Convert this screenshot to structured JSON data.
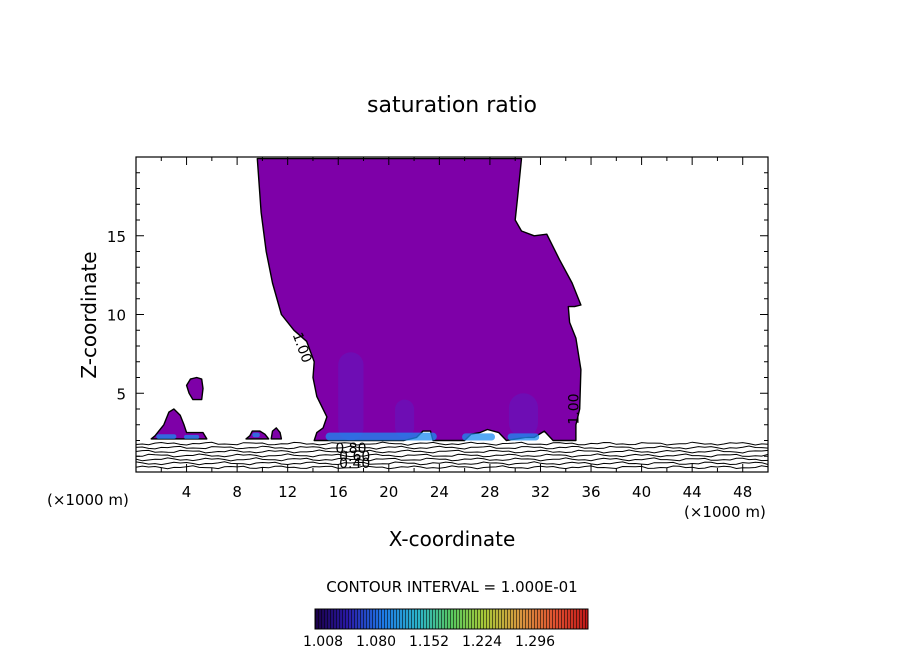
{
  "chart_data": {
    "type": "contour",
    "title": "saturation ratio",
    "xlabel": "X-coordinate",
    "ylabel": "Z-coordinate",
    "x_unit_left": "(×1000 m)",
    "x_unit_right": "(×1000 m)",
    "xlim": [
      0,
      50
    ],
    "ylim": [
      0,
      20
    ],
    "x_ticks": [
      4,
      8,
      12,
      16,
      20,
      24,
      28,
      32,
      36,
      40,
      44,
      48
    ],
    "y_ticks": [
      5,
      10,
      15
    ],
    "contour_interval_text": "CONTOUR INTERVAL = 1.000E-01",
    "contour_labels": [
      {
        "text": "1.00",
        "x": 12.8,
        "y": 7.8,
        "angle": 70
      },
      {
        "text": "1.00",
        "x": 35.0,
        "y": 4.0,
        "angle": -90
      },
      {
        "text": "0.80",
        "x": 17.0,
        "y": 1.2,
        "angle": 0
      },
      {
        "text": "0.60",
        "x": 17.3,
        "y": 0.7,
        "angle": 0
      },
      {
        "text": "0.40",
        "x": 17.3,
        "y": 0.25,
        "angle": 0
      }
    ],
    "colorbar": {
      "tick_labels": [
        "1.008",
        "1.080",
        "1.152",
        "1.224",
        "1.296"
      ],
      "range": [
        1.008,
        1.332
      ]
    },
    "regions": [
      {
        "name": "main-cloud",
        "value": 1.02,
        "color": "#7e00a8",
        "outline": [
          [
            9.6,
            19.9
          ],
          [
            30.5,
            19.9
          ],
          [
            30.2,
            17.5
          ],
          [
            30.0,
            16.0
          ],
          [
            30.5,
            15.3
          ],
          [
            31.5,
            15.0
          ],
          [
            32.5,
            15.1
          ],
          [
            33.5,
            13.5
          ],
          [
            34.5,
            12.0
          ],
          [
            35.2,
            10.6
          ],
          [
            34.7,
            10.5
          ],
          [
            34.2,
            10.5
          ],
          [
            34.3,
            9.5
          ],
          [
            34.8,
            8.5
          ],
          [
            35.2,
            6.5
          ],
          [
            35.1,
            4.0
          ],
          [
            34.8,
            3.0
          ],
          [
            34.8,
            2.0
          ],
          [
            33.0,
            2.0
          ],
          [
            32.3,
            2.6
          ],
          [
            31.5,
            2.2
          ],
          [
            30.8,
            2.2
          ],
          [
            29.3,
            2.0
          ],
          [
            28.7,
            2.5
          ],
          [
            27.8,
            2.7
          ],
          [
            27.2,
            2.5
          ],
          [
            26.5,
            2.4
          ],
          [
            26.0,
            2.0
          ],
          [
            23.5,
            2.0
          ],
          [
            23.3,
            2.6
          ],
          [
            22.7,
            2.6
          ],
          [
            22.2,
            2.2
          ],
          [
            21.2,
            2.0
          ],
          [
            14.1,
            2.0
          ],
          [
            14.3,
            2.5
          ],
          [
            14.8,
            2.8
          ],
          [
            15.1,
            3.5
          ],
          [
            14.3,
            4.8
          ],
          [
            14.0,
            6.0
          ],
          [
            14.1,
            7.0
          ],
          [
            13.5,
            8.3
          ],
          [
            12.5,
            9.0
          ],
          [
            11.5,
            10.0
          ],
          [
            10.8,
            12.0
          ],
          [
            10.3,
            14.0
          ],
          [
            9.9,
            16.5
          ]
        ]
      },
      {
        "name": "left-blob",
        "value": 1.02,
        "color": "#7e00a8",
        "outline": [
          [
            1.2,
            2.1
          ],
          [
            1.5,
            2.3
          ],
          [
            2.2,
            3.0
          ],
          [
            2.6,
            3.8
          ],
          [
            3.0,
            4.0
          ],
          [
            3.5,
            3.6
          ],
          [
            3.8,
            3.0
          ],
          [
            4.0,
            2.5
          ],
          [
            5.3,
            2.5
          ],
          [
            5.6,
            2.1
          ]
        ]
      },
      {
        "name": "left-top-blob",
        "value": 1.02,
        "color": "#7e00a8",
        "outline": [
          [
            4.0,
            5.5
          ],
          [
            4.3,
            5.9
          ],
          [
            4.8,
            6.0
          ],
          [
            5.2,
            5.9
          ],
          [
            5.3,
            5.3
          ],
          [
            5.2,
            4.6
          ],
          [
            4.5,
            4.6
          ],
          [
            4.2,
            5.0
          ]
        ]
      },
      {
        "name": "mid-blob",
        "value": 1.02,
        "color": "#7e00a8",
        "outline": [
          [
            8.7,
            2.1
          ],
          [
            9.0,
            2.3
          ],
          [
            9.2,
            2.6
          ],
          [
            9.8,
            2.6
          ],
          [
            10.2,
            2.4
          ],
          [
            10.5,
            2.1
          ]
        ]
      },
      {
        "name": "small-blob",
        "value": 1.02,
        "color": "#7e00a8",
        "outline": [
          [
            10.7,
            2.1
          ],
          [
            10.8,
            2.6
          ],
          [
            11.1,
            2.8
          ],
          [
            11.4,
            2.5
          ],
          [
            11.5,
            2.1
          ]
        ]
      }
    ],
    "shading": [
      {
        "x": [
          16.0,
          18.0
        ],
        "y": [
          2.0,
          7.6
        ],
        "color": "#6a12b8"
      },
      {
        "x": [
          29.5,
          31.8
        ],
        "y": [
          2.2,
          5.0
        ],
        "color": "#6a12b8"
      },
      {
        "x": [
          20.5,
          22.0
        ],
        "y": [
          2.2,
          4.6
        ],
        "color": "#6a12b8"
      },
      {
        "x": [
          15.0,
          23.8
        ],
        "y": [
          2.0,
          2.5
        ],
        "color": "#1c8cf2"
      },
      {
        "x": [
          25.8,
          28.4
        ],
        "y": [
          2.0,
          2.45
        ],
        "color": "#1c8cf2"
      },
      {
        "x": [
          29.4,
          31.9
        ],
        "y": [
          2.0,
          2.45
        ],
        "color": "#1c8cf2"
      },
      {
        "x": [
          1.6,
          3.2
        ],
        "y": [
          2.1,
          2.4
        ],
        "color": "#1c8cf2"
      },
      {
        "x": [
          3.8,
          5.0
        ],
        "y": [
          2.1,
          2.35
        ],
        "color": "#1c8cf2"
      },
      {
        "x": [
          9.2,
          9.8
        ],
        "y": [
          2.2,
          2.5
        ],
        "color": "#1c8cf2"
      }
    ],
    "ground_contours": [
      0.3,
      0.55,
      0.8,
      1.05,
      1.3,
      1.55,
      1.8
    ]
  }
}
